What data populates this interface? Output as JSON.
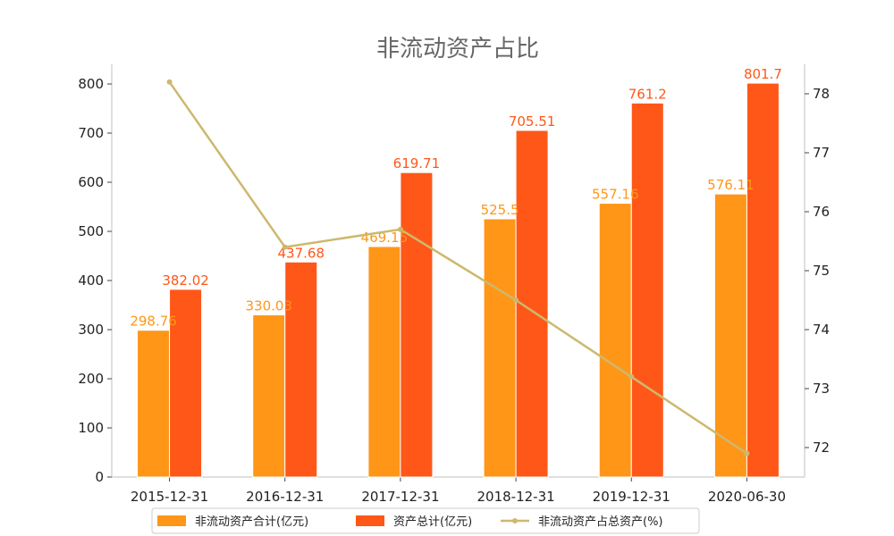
{
  "chart_data": {
    "type": "bar",
    "title": "非流动资产占比",
    "categories": [
      "2015-12-31",
      "2016-12-31",
      "2017-12-31",
      "2018-12-31",
      "2019-12-31",
      "2020-06-30"
    ],
    "series": [
      {
        "name": "非流动资产合计(亿元)",
        "type": "bar",
        "axis": "left",
        "color": "#FF9618",
        "values": [
          298.76,
          330.03,
          469.15,
          525.5,
          557.16,
          576.11
        ],
        "labels": [
          "298.76",
          "330.03",
          "469.15",
          "525.5",
          "557.16",
          "576.11"
        ]
      },
      {
        "name": "资产总计(亿元)",
        "type": "bar",
        "axis": "left",
        "color": "#FF5718",
        "values": [
          382.02,
          437.68,
          619.71,
          705.51,
          761.2,
          801.7
        ],
        "labels": [
          "382.02",
          "437.68",
          "619.71",
          "705.51",
          "761.2",
          "801.7"
        ]
      },
      {
        "name": "非流动资产占总资产(%)",
        "type": "line",
        "axis": "right",
        "color": "#CDB86E",
        "values": [
          78.2,
          75.4,
          75.7,
          74.5,
          73.2,
          71.9
        ]
      }
    ],
    "y_left": {
      "ylim": [
        0,
        840
      ],
      "ticks": [
        0,
        100,
        200,
        300,
        400,
        500,
        600,
        700,
        800
      ]
    },
    "y_right": {
      "ylim": [
        71.5,
        78.5
      ],
      "ticks": [
        72,
        73,
        74,
        75,
        76,
        77,
        78
      ]
    },
    "legend": {
      "placement": "bottom"
    },
    "grid": false
  }
}
